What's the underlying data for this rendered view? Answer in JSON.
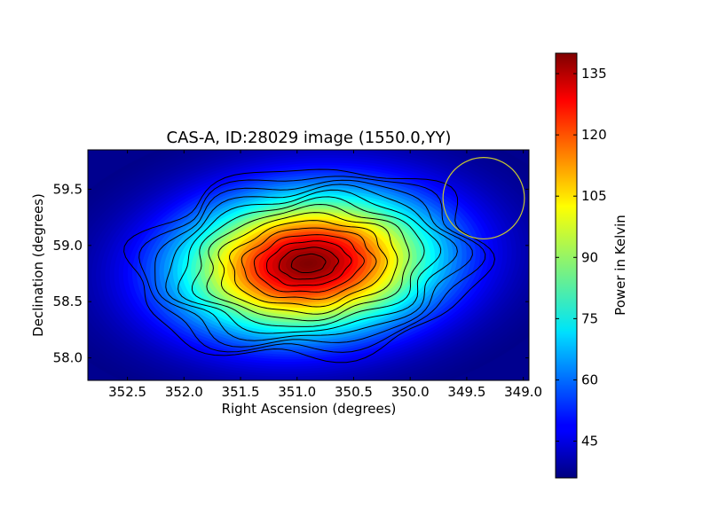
{
  "chart_data": {
    "type": "heatmap",
    "title": "CAS-A, ID:28029 image (1550.0,YY)",
    "xlabel": "Right Ascension (degrees)",
    "ylabel": "Declination (degrees)",
    "xlim": [
      352.85,
      348.95
    ],
    "ylim": [
      57.8,
      59.85
    ],
    "xticks": [
      "352.5",
      "352.0",
      "351.5",
      "351.0",
      "350.5",
      "350.0",
      "349.5",
      "349.0"
    ],
    "xtick_values": [
      352.5,
      352.0,
      351.5,
      351.0,
      350.5,
      350.0,
      349.5,
      349.0
    ],
    "yticks": [
      "58.0",
      "58.5",
      "59.0",
      "59.5"
    ],
    "ytick_values": [
      58.0,
      58.5,
      59.0,
      59.5
    ],
    "grid": false,
    "colormap": "jet",
    "source": {
      "ra_center": 350.9,
      "dec_center": 58.84,
      "peak": 140,
      "background": 36,
      "contour_count": 14,
      "outer_contour_extent_ra": [
        352.45,
        349.35
      ],
      "outer_contour_extent_dec": [
        58.0,
        59.68
      ]
    },
    "beam_circle": {
      "ra_center": 349.35,
      "dec_center": 59.42,
      "radius_ra": 0.36,
      "color": "#c8c832"
    },
    "colorbar": {
      "label": "Power in Kelvin",
      "min": 36,
      "max": 140,
      "ticks": [
        "45",
        "60",
        "75",
        "90",
        "105",
        "120",
        "135"
      ],
      "tick_values": [
        45,
        60,
        75,
        90,
        105,
        120,
        135
      ]
    }
  }
}
